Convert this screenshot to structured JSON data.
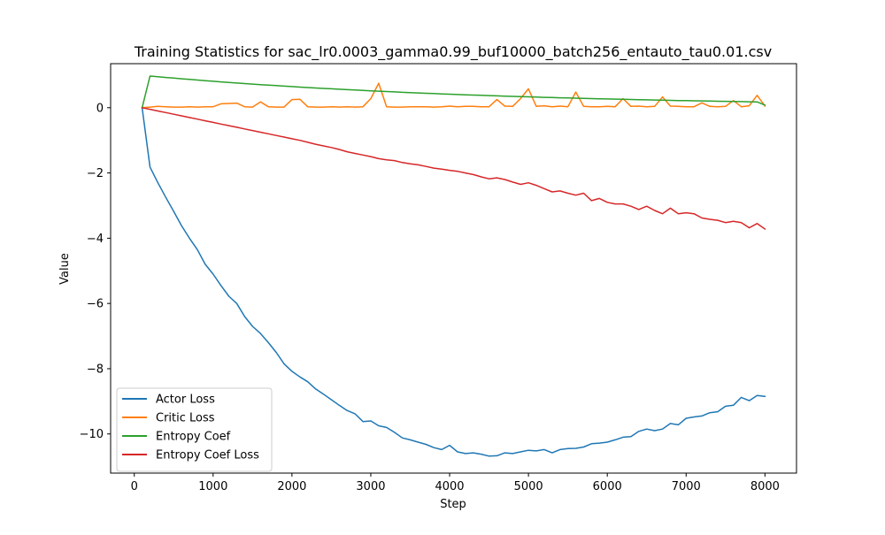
{
  "chart_data": {
    "type": "line",
    "title": "Training Statistics for sac_lr0.0003_gamma0.99_buf10000_batch256_entauto_tau0.01.csv",
    "xlabel": "Step",
    "ylabel": "Value",
    "xlim": [
      -300,
      8400
    ],
    "ylim": [
      -11.2,
      1.35
    ],
    "xticks": [
      0,
      1000,
      2000,
      3000,
      4000,
      5000,
      6000,
      7000,
      8000
    ],
    "yticks": [
      -10,
      -8,
      -6,
      -4,
      -2,
      0
    ],
    "legend_position": "lower-left",
    "grid": false,
    "series": [
      {
        "name": "Actor Loss",
        "color": "#1f77b4",
        "x": [
          100,
          200,
          300,
          400,
          500,
          600,
          700,
          800,
          900,
          1000,
          1100,
          1200,
          1300,
          1400,
          1500,
          1600,
          1700,
          1800,
          1900,
          2000,
          2100,
          2200,
          2300,
          2400,
          2500,
          2600,
          2700,
          2800,
          2900,
          3000,
          3100,
          3200,
          3300,
          3400,
          3500,
          3600,
          3700,
          3800,
          3900,
          4000,
          4100,
          4200,
          4300,
          4400,
          4500,
          4600,
          4700,
          4800,
          4900,
          5000,
          5100,
          5200,
          5300,
          5400,
          5500,
          5600,
          5700,
          5800,
          5900,
          6000,
          6100,
          6200,
          6300,
          6400,
          6500,
          6600,
          6700,
          6800,
          6900,
          7000,
          7100,
          7200,
          7300,
          7400,
          7500,
          7600,
          7700,
          7800,
          7900,
          8000
        ],
        "values": [
          0,
          -1.82,
          -2.3,
          -2.75,
          -3.18,
          -3.62,
          -4.0,
          -4.35,
          -4.8,
          -5.1,
          -5.45,
          -5.78,
          -6.0,
          -6.4,
          -6.7,
          -6.92,
          -7.2,
          -7.5,
          -7.85,
          -8.08,
          -8.25,
          -8.4,
          -8.62,
          -8.78,
          -8.95,
          -9.12,
          -9.28,
          -9.38,
          -9.62,
          -9.6,
          -9.75,
          -9.8,
          -9.95,
          -10.12,
          -10.18,
          -10.25,
          -10.32,
          -10.42,
          -10.48,
          -10.35,
          -10.55,
          -10.6,
          -10.58,
          -10.62,
          -10.68,
          -10.67,
          -10.58,
          -10.6,
          -10.55,
          -10.5,
          -10.52,
          -10.48,
          -10.58,
          -10.48,
          -10.45,
          -10.44,
          -10.4,
          -10.3,
          -10.28,
          -10.25,
          -10.18,
          -10.1,
          -10.08,
          -9.92,
          -9.85,
          -9.9,
          -9.85,
          -9.68,
          -9.72,
          -9.52,
          -9.48,
          -9.45,
          -9.35,
          -9.32,
          -9.15,
          -9.12,
          -8.88,
          -8.98,
          -8.82,
          -8.85
        ]
      },
      {
        "name": "Critic Loss",
        "color": "#ff7f0e",
        "x": [
          100,
          200,
          300,
          400,
          500,
          600,
          700,
          800,
          900,
          1000,
          1100,
          1200,
          1300,
          1400,
          1500,
          1600,
          1700,
          1800,
          1900,
          2000,
          2100,
          2200,
          2300,
          2400,
          2500,
          2600,
          2700,
          2800,
          2900,
          3000,
          3100,
          3200,
          3300,
          3400,
          3500,
          3600,
          3700,
          3800,
          3900,
          4000,
          4100,
          4200,
          4300,
          4400,
          4500,
          4600,
          4700,
          4800,
          4900,
          5000,
          5100,
          5200,
          5300,
          5400,
          5500,
          5600,
          5700,
          5800,
          5900,
          6000,
          6100,
          6200,
          6300,
          6400,
          6500,
          6600,
          6700,
          6800,
          6900,
          7000,
          7100,
          7200,
          7300,
          7400,
          7500,
          7600,
          7700,
          7800,
          7900,
          8000
        ],
        "values": [
          0,
          0.02,
          0.04,
          0.03,
          0.02,
          0.02,
          0.03,
          0.02,
          0.03,
          0.03,
          0.12,
          0.13,
          0.14,
          0.03,
          0.02,
          0.18,
          0.03,
          0.02,
          0.02,
          0.25,
          0.26,
          0.03,
          0.02,
          0.02,
          0.03,
          0.02,
          0.03,
          0.02,
          0.03,
          0.28,
          0.75,
          0.03,
          0.02,
          0.02,
          0.03,
          0.03,
          0.03,
          0.02,
          0.03,
          0.05,
          0.03,
          0.04,
          0.04,
          0.03,
          0.03,
          0.25,
          0.05,
          0.04,
          0.28,
          0.58,
          0.04,
          0.06,
          0.03,
          0.05,
          0.03,
          0.48,
          0.04,
          0.03,
          0.03,
          0.04,
          0.03,
          0.28,
          0.04,
          0.05,
          0.03,
          0.04,
          0.33,
          0.05,
          0.04,
          0.03,
          0.03,
          0.15,
          0.04,
          0.03,
          0.04,
          0.22,
          0.03,
          0.06,
          0.38,
          0.05
        ]
      },
      {
        "name": "Entropy Coef",
        "color": "#2ca02c",
        "x": [
          100,
          200,
          300,
          400,
          500,
          600,
          700,
          800,
          900,
          1000,
          1100,
          1200,
          1300,
          1400,
          1500,
          1600,
          1700,
          1800,
          1900,
          2000,
          2100,
          2200,
          2300,
          2400,
          2500,
          2600,
          2700,
          2800,
          2900,
          3000,
          3100,
          3200,
          3300,
          3400,
          3500,
          3600,
          3700,
          3800,
          3900,
          4000,
          4100,
          4200,
          4300,
          4400,
          4500,
          4600,
          4700,
          4800,
          4900,
          5000,
          5100,
          5200,
          5300,
          5400,
          5500,
          5600,
          5700,
          5800,
          5900,
          6000,
          6100,
          6200,
          6300,
          6400,
          6500,
          6600,
          6700,
          6800,
          6900,
          7000,
          7100,
          7200,
          7300,
          7400,
          7500,
          7600,
          7700,
          7800,
          7900,
          8000
        ],
        "values": [
          0,
          0.97,
          0.949,
          0.928,
          0.907,
          0.887,
          0.867,
          0.848,
          0.829,
          0.81,
          0.792,
          0.775,
          0.757,
          0.74,
          0.724,
          0.708,
          0.692,
          0.677,
          0.662,
          0.647,
          0.633,
          0.619,
          0.605,
          0.592,
          0.579,
          0.566,
          0.553,
          0.541,
          0.529,
          0.517,
          0.506,
          0.495,
          0.484,
          0.473,
          0.463,
          0.453,
          0.443,
          0.433,
          0.423,
          0.414,
          0.405,
          0.396,
          0.388,
          0.379,
          0.371,
          0.363,
          0.355,
          0.347,
          0.34,
          0.333,
          0.325,
          0.318,
          0.312,
          0.305,
          0.299,
          0.292,
          0.286,
          0.28,
          0.274,
          0.268,
          0.262,
          0.257,
          0.251,
          0.246,
          0.241,
          0.236,
          0.231,
          0.226,
          0.221,
          0.217,
          0.212,
          0.208,
          0.203,
          0.199,
          0.195,
          0.191,
          0.187,
          0.183,
          0.179,
          0.08
        ]
      },
      {
        "name": "Entropy Coef Loss",
        "color": "#d62728",
        "x": [
          100,
          200,
          300,
          400,
          500,
          600,
          700,
          800,
          900,
          1000,
          1100,
          1200,
          1300,
          1400,
          1500,
          1600,
          1700,
          1800,
          1900,
          2000,
          2100,
          2200,
          2300,
          2400,
          2500,
          2600,
          2700,
          2800,
          2900,
          3000,
          3100,
          3200,
          3300,
          3400,
          3500,
          3600,
          3700,
          3800,
          3900,
          4000,
          4100,
          4200,
          4300,
          4400,
          4500,
          4600,
          4700,
          4800,
          4900,
          5000,
          5100,
          5200,
          5300,
          5400,
          5500,
          5600,
          5700,
          5800,
          5900,
          6000,
          6100,
          6200,
          6300,
          6400,
          6500,
          6600,
          6700,
          6800,
          6900,
          7000,
          7100,
          7200,
          7300,
          7400,
          7500,
          7600,
          7700,
          7800,
          7900,
          8000
        ],
        "values": [
          0,
          -0.05,
          -0.1,
          -0.15,
          -0.2,
          -0.25,
          -0.3,
          -0.35,
          -0.4,
          -0.45,
          -0.5,
          -0.55,
          -0.6,
          -0.65,
          -0.7,
          -0.75,
          -0.8,
          -0.85,
          -0.9,
          -0.95,
          -1.0,
          -1.06,
          -1.12,
          -1.17,
          -1.22,
          -1.28,
          -1.35,
          -1.4,
          -1.45,
          -1.5,
          -1.56,
          -1.6,
          -1.62,
          -1.68,
          -1.72,
          -1.75,
          -1.8,
          -1.85,
          -1.88,
          -1.92,
          -1.95,
          -2.0,
          -2.05,
          -2.12,
          -2.18,
          -2.15,
          -2.2,
          -2.28,
          -2.35,
          -2.3,
          -2.38,
          -2.48,
          -2.58,
          -2.55,
          -2.62,
          -2.68,
          -2.62,
          -2.85,
          -2.78,
          -2.9,
          -2.95,
          -2.95,
          -3.02,
          -3.12,
          -3.02,
          -3.15,
          -3.25,
          -3.08,
          -3.25,
          -3.22,
          -3.25,
          -3.38,
          -3.42,
          -3.45,
          -3.52,
          -3.48,
          -3.52,
          -3.68,
          -3.55,
          -3.72
        ]
      }
    ]
  }
}
